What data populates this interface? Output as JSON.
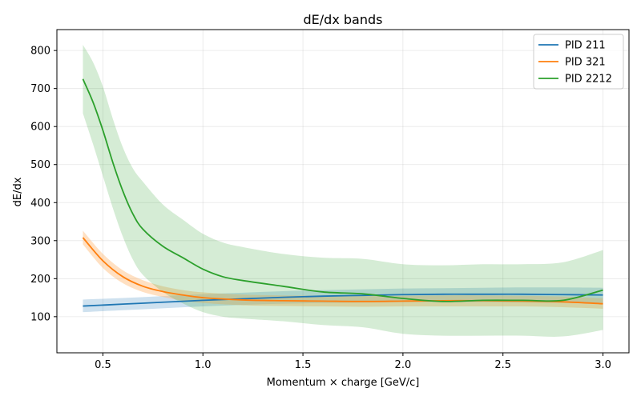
{
  "chart_data": {
    "type": "line",
    "title": "dE/dx bands",
    "xlabel": "Momentum × charge [GeV/c]",
    "ylabel": "dE/dx",
    "xlim": [
      0.27,
      3.13
    ],
    "ylim": [
      5,
      855
    ],
    "xticks": [
      0.5,
      1.0,
      1.5,
      2.0,
      2.5,
      3.0
    ],
    "xtick_labels": [
      "0.5",
      "1.0",
      "1.5",
      "2.0",
      "2.5",
      "3.0"
    ],
    "yticks": [
      100,
      200,
      300,
      400,
      500,
      600,
      700,
      800
    ],
    "ytick_labels": [
      "100",
      "200",
      "300",
      "400",
      "500",
      "600",
      "700",
      "800"
    ],
    "grid": true,
    "legend_position": "top-right",
    "series": [
      {
        "name": "PID 211",
        "color": "#1f77b4",
        "band_color": "#1f77b4",
        "x": [
          0.4,
          0.6,
          0.8,
          1.0,
          1.2,
          1.4,
          1.6,
          1.8,
          2.0,
          2.2,
          2.4,
          2.6,
          2.8,
          3.0
        ],
        "y": [
          128,
          133,
          138,
          143,
          147,
          151,
          154,
          156,
          158,
          159,
          159,
          159,
          158,
          157
        ],
        "lower": [
          112,
          117,
          122,
          127,
          131,
          134,
          136,
          137,
          138,
          138,
          138,
          137,
          136,
          134
        ],
        "upper": [
          145,
          149,
          154,
          159,
          163,
          167,
          170,
          172,
          174,
          175,
          176,
          177,
          177,
          176
        ]
      },
      {
        "name": "PID 321",
        "color": "#ff7f0e",
        "band_color": "#ffbb78",
        "x": [
          0.4,
          0.5,
          0.6,
          0.7,
          0.8,
          0.9,
          1.0,
          1.2,
          1.4,
          1.6,
          1.8,
          2.0,
          2.2,
          2.4,
          2.6,
          2.8,
          3.0
        ],
        "y": [
          308,
          247,
          205,
          180,
          166,
          157,
          150,
          144,
          142,
          141,
          140,
          141,
          142,
          142,
          141,
          139,
          134
        ],
        "lower": [
          290,
          228,
          188,
          165,
          152,
          142,
          136,
          130,
          128,
          127,
          126,
          127,
          127,
          127,
          127,
          125,
          121
        ],
        "upper": [
          326,
          265,
          222,
          196,
          180,
          170,
          164,
          158,
          156,
          155,
          154,
          155,
          156,
          156,
          155,
          153,
          148
        ]
      },
      {
        "name": "PID 2212",
        "color": "#2ca02c",
        "band_color": "#2ca02c",
        "x": [
          0.4,
          0.45,
          0.5,
          0.55,
          0.6,
          0.65,
          0.7,
          0.8,
          0.9,
          1.0,
          1.1,
          1.2,
          1.4,
          1.6,
          1.8,
          2.0,
          2.2,
          2.4,
          2.6,
          2.8,
          3.0
        ],
        "y": [
          725,
          665,
          590,
          505,
          430,
          370,
          330,
          285,
          255,
          225,
          205,
          195,
          180,
          165,
          160,
          148,
          140,
          143,
          143,
          143,
          170
        ],
        "lower": [
          635,
          555,
          470,
          385,
          310,
          250,
          210,
          165,
          135,
          112,
          100,
          95,
          88,
          78,
          72,
          55,
          50,
          50,
          50,
          48,
          65
        ],
        "upper": [
          815,
          770,
          705,
          620,
          545,
          490,
          455,
          395,
          355,
          318,
          295,
          283,
          265,
          255,
          252,
          238,
          235,
          238,
          238,
          243,
          275
        ]
      }
    ]
  }
}
